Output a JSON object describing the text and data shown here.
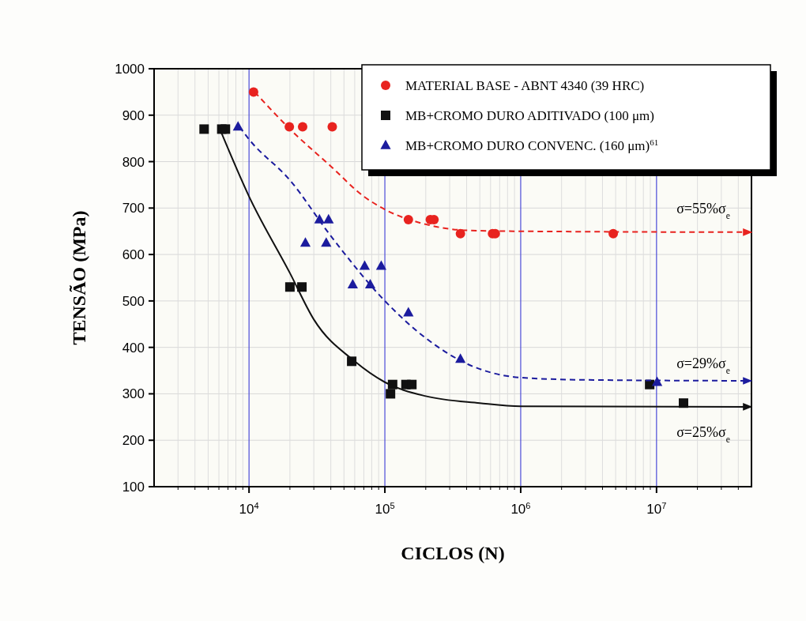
{
  "chart_data": {
    "type": "scatter",
    "xlabel": "CICLOS (N)",
    "ylabel": "TENSÃO (MPa)",
    "log": "x",
    "xlim": [
      2000,
      50000000
    ],
    "ylim": [
      100,
      1000
    ],
    "xticks": [
      {
        "value": 10000,
        "label": "10$^{4}$"
      },
      {
        "value": 100000,
        "label": "10$^{5}$"
      },
      {
        "value": 1000000,
        "label": "10$^{6}$"
      },
      {
        "value": 10000000,
        "label": "10$^{7}$"
      }
    ],
    "yticks": [
      100,
      200,
      300,
      400,
      500,
      600,
      700,
      800,
      900,
      1000
    ],
    "grid": true,
    "legend": "top right",
    "series": [
      {
        "name": "MATERIAL BASE  -  ABNT 4340 (39 HRC)",
        "marker": "circle",
        "color": "#e8231f",
        "x": [
          10800,
          19800,
          24800,
          41000,
          149000,
          216000,
          230000,
          360000,
          620000,
          650000,
          4800000
        ],
        "values": [
          950,
          875,
          875,
          875,
          675,
          675,
          675,
          645,
          645,
          645,
          645
        ]
      },
      {
        "name": "MB+CROMO DURO ADITIVADO (100 μm)",
        "marker": "square",
        "color": "#111111",
        "x": [
          4670,
          6300,
          6700,
          20000,
          24500,
          57000,
          114000,
          110000,
          143000,
          158000,
          8900000,
          15800000
        ],
        "values": [
          870,
          870,
          870,
          530,
          530,
          370,
          320,
          300,
          320,
          320,
          320,
          280
        ]
      },
      {
        "name": "MB+CROMO DURO CONVENC. (160 μm)$^{61}$",
        "marker": "triangle",
        "color": "#1c1c9e",
        "x": [
          8300,
          33000,
          38500,
          26000,
          37000,
          58000,
          71000,
          78000,
          94000,
          149000,
          360000,
          10100000
        ],
        "values": [
          875,
          675,
          675,
          625,
          625,
          535,
          575,
          535,
          575,
          475,
          375,
          325
        ]
      },
      {
        "type": "line",
        "marker": "none",
        "line_style": "dashed",
        "color": "#e8231f",
        "x": [
          11000,
          20000,
          40000,
          70000,
          100000,
          200000,
          400000,
          1000000,
          50000000
        ],
        "values": [
          950,
          870,
          790,
          725,
          697,
          665,
          652,
          650,
          648
        ]
      },
      {
        "type": "line",
        "marker": "none",
        "line_style": "solid",
        "color": "#111111",
        "x": [
          6000,
          10000,
          20000,
          30000,
          60000,
          100000,
          200000,
          500000,
          1000000,
          50000000
        ],
        "values": [
          875,
          725,
          560,
          460,
          370,
          325,
          295,
          280,
          273,
          272
        ]
      },
      {
        "type": "line",
        "marker": "none",
        "line_style": "dashed",
        "color": "#1c1c9e",
        "x": [
          8500,
          10000,
          20000,
          40000,
          100000,
          200000,
          400000,
          1000000,
          3000000,
          50000000
        ],
        "values": [
          875,
          848,
          760,
          640,
          500,
          420,
          365,
          335,
          330,
          328
        ]
      }
    ],
    "annotations": [
      "σ=55%σ$_{e}$",
      "σ=29%σ$_{e}$",
      "σ=25%σ$_{e}$"
    ]
  }
}
